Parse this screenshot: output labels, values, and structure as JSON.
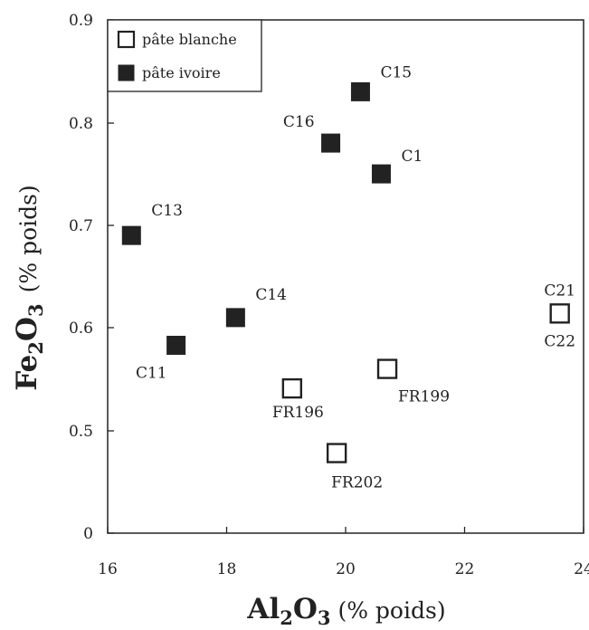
{
  "chart_data": {
    "type": "scatter",
    "xlim": [
      16,
      24
    ],
    "ylim": [
      0.4,
      0.9
    ],
    "y_axis_break": true,
    "x_ticks": [
      16,
      18,
      20,
      22,
      24
    ],
    "x_tick_labels": [
      "16",
      "18",
      "20",
      "22",
      "24"
    ],
    "y_ticks": [
      0.4,
      0.5,
      0.6,
      0.7,
      0.8,
      0.9
    ],
    "y_tick_labels": [
      "0",
      "0.5",
      "0.6",
      "0.7",
      "0.8",
      "0.9"
    ],
    "xlabel": {
      "main": "Al",
      "sub1": "2",
      "mid": "O",
      "sub2": "3",
      "unit": " (% poids)"
    },
    "ylabel": {
      "main": "Fe",
      "sub1": "2",
      "mid": "O",
      "sub2": "3",
      "unit": "(% poids)"
    },
    "legend_position": "top-left",
    "series": [
      {
        "name": "pâte blanche",
        "marker": "open-square",
        "color": "#222222",
        "points": [
          {
            "x": 23.6,
            "y": 0.614,
            "label": "C21"
          },
          {
            "x": 23.6,
            "y": 0.614,
            "label": "C22"
          },
          {
            "x": 20.7,
            "y": 0.56,
            "label": "FR199"
          },
          {
            "x": 19.1,
            "y": 0.541,
            "label": "FR196"
          },
          {
            "x": 19.85,
            "y": 0.478,
            "label": "FR202"
          }
        ]
      },
      {
        "name": "pâte ivoire",
        "marker": "filled-square",
        "color": "#222222",
        "points": [
          {
            "x": 20.25,
            "y": 0.83,
            "label": "C15"
          },
          {
            "x": 19.75,
            "y": 0.78,
            "label": "C16"
          },
          {
            "x": 20.6,
            "y": 0.75,
            "label": "C1"
          },
          {
            "x": 16.4,
            "y": 0.69,
            "label": "C13"
          },
          {
            "x": 18.15,
            "y": 0.61,
            "label": "C14"
          },
          {
            "x": 17.15,
            "y": 0.583,
            "label": "C11"
          }
        ]
      }
    ]
  }
}
